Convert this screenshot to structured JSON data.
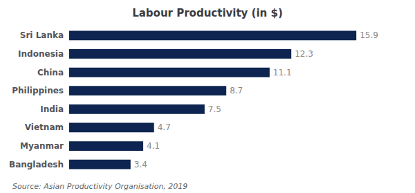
{
  "chart_data": {
    "type": "bar",
    "title": "Labour Productivity (in $)",
    "categories": [
      "Sri Lanka",
      "Indonesia",
      "China",
      "Philippines",
      "India",
      "Vietnam",
      "Myanmar",
      "Bangladesh"
    ],
    "values": [
      15.9,
      12.3,
      11.1,
      8.7,
      7.5,
      4.7,
      4.1,
      3.4
    ],
    "color": "#0d2550",
    "orientation": "horizontal",
    "xlim": [
      0,
      18
    ],
    "grid": false,
    "data_labels": true,
    "tick_labels": "y",
    "annotations": [
      "Source: Asian Productivity Organisation, 2019"
    ]
  }
}
